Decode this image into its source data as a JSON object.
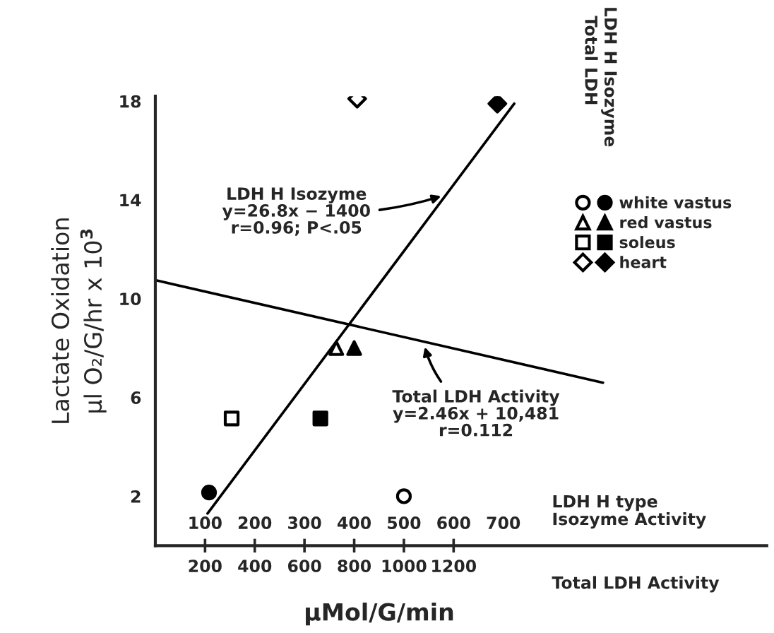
{
  "chart_data": {
    "type": "scatter",
    "ylabel": "Lactate Oxidation\nμl O₂/G/hr x 10$^{3}$",
    "xlabel": "μMol/G/min",
    "x2label": "LDH H type\nIsozyme Activity",
    "xlim": [
      0,
      2460
    ],
    "xticks": [
      200,
      400,
      600,
      800,
      1000,
      1200
    ],
    "x2lim": [
      0,
      1230
    ],
    "x2ticks": [
      100,
      200,
      300,
      400,
      500,
      600,
      700
    ],
    "ylim": [
      0,
      18.2
    ],
    "yticks": [
      2,
      6,
      10,
      14,
      18
    ],
    "grid": false,
    "legend": "right",
    "series": [
      {
        "marker": "circle",
        "color": "#000000",
        "x": [
          1000
        ],
        "values": [
          2.0
        ]
      },
      {
        "name": "white vastus",
        "marker": "circle",
        "axis": "x2",
        "color": "#000000",
        "x": [
          108
        ],
        "values": [
          2.15
        ]
      },
      {
        "marker": "triangle",
        "color": "#000000",
        "x": [
          728
        ],
        "values": [
          8.0
        ]
      },
      {
        "name": "red vastus",
        "marker": "triangle",
        "axis": "x2",
        "color": "#000000",
        "x": [
          400
        ],
        "values": [
          8.0
        ]
      },
      {
        "marker": "square",
        "color": "#000000",
        "x": [
          307
        ],
        "values": [
          5.15
        ]
      },
      {
        "name": "soleus",
        "marker": "square",
        "axis": "x2",
        "color": "#000000",
        "x": [
          332
        ],
        "values": [
          5.15
        ]
      },
      {
        "marker": "diamond",
        "color": "#000000",
        "x": [
          812
        ],
        "values": [
          18.1
        ]
      },
      {
        "name": "heart",
        "marker": "diamond",
        "axis": "x2",
        "color": "#000000",
        "x": [
          688
        ],
        "values": [
          17.9
        ]
      },
      {
        "type": "line",
        "axis": "x2",
        "color": "#000000",
        "x": [
          105,
          722
        ],
        "values": [
          1.3,
          17.9
        ]
      },
      {
        "type": "line",
        "color": "#000000",
        "x": [
          0,
          1801
        ],
        "values": [
          10.75,
          6.6
        ]
      }
    ],
    "annotations": [
      {
        "text": "LDH H Isozyme\ny=26.8x − 1400\nr=0.96; P<.05",
        "x": 1165,
        "y": 14.2
      },
      {
        "text": "Total LDH Activity\ny=2.46x + 10,481\nr=0.112",
        "x": 1080,
        "y": 8.2
      },
      "Total LDH",
      "LDH H Isozyme",
      "Total LDH Activity"
    ]
  }
}
